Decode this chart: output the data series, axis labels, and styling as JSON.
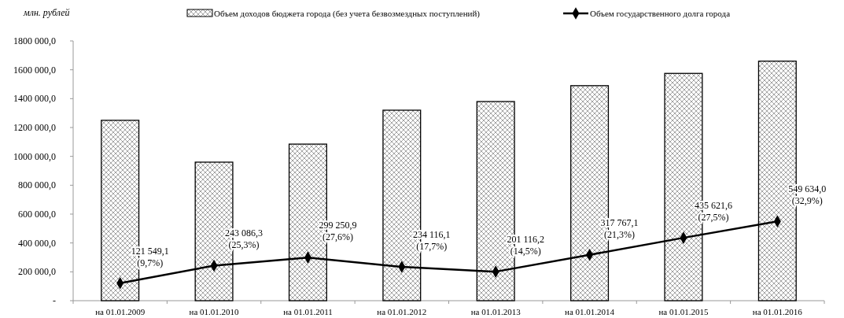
{
  "chart_data": {
    "type": "bar",
    "ylabel": "млн. рублей",
    "categories": [
      "на 01.01.2009",
      "на 01.01.2010",
      "на 01.01.2011",
      "на 01.01.2012",
      "на 01.01.2013",
      "на 01.01.2014",
      "на 01.01.2015",
      "на 01.01.2016"
    ],
    "series": [
      {
        "name": "Объем доходов бюджета города (без учета безвозмездных поступлений)",
        "color": "#000000",
        "values": [
          1250000,
          960000,
          1085000,
          1320000,
          1380000,
          1490000,
          1575000,
          1660000
        ]
      },
      {
        "type": "line",
        "name": "Объем государственного долга города",
        "color": "#000000",
        "marker": "diamond",
        "values": [
          121549.1,
          243086.3,
          299250.9,
          234116.1,
          201116.2,
          317767.1,
          435621.6,
          549634.0
        ],
        "value_labels": [
          "121 549,1\n(9,7%)",
          "243 086,3\n(25,3%)",
          "299 250,9\n(27,6%)",
          "234 116,1\n(17,7%)",
          "201 116,2\n(14,5%)",
          "317 767,1\n(21,3%)",
          "435 621,6\n(27,5%)",
          "549 634,0\n(32,9%)"
        ]
      }
    ],
    "ylim": [
      0,
      1800000
    ],
    "yticks": [
      {
        "value": 0,
        "label": "-"
      },
      {
        "value": 200000,
        "label": "200 000,0"
      },
      {
        "value": 400000,
        "label": "400 000,0"
      },
      {
        "value": 600000,
        "label": "600 000,0"
      },
      {
        "value": 800000,
        "label": "800 000,0"
      },
      {
        "value": 1000000,
        "label": "1000 000,0"
      },
      {
        "value": 1200000,
        "label": "1200 000,0"
      },
      {
        "value": 1400000,
        "label": "1400 000,0"
      },
      {
        "value": 1600000,
        "label": "1600 000,0"
      },
      {
        "value": 1800000,
        "label": "1800 000,0"
      }
    ],
    "grid": false,
    "legend": "top"
  }
}
